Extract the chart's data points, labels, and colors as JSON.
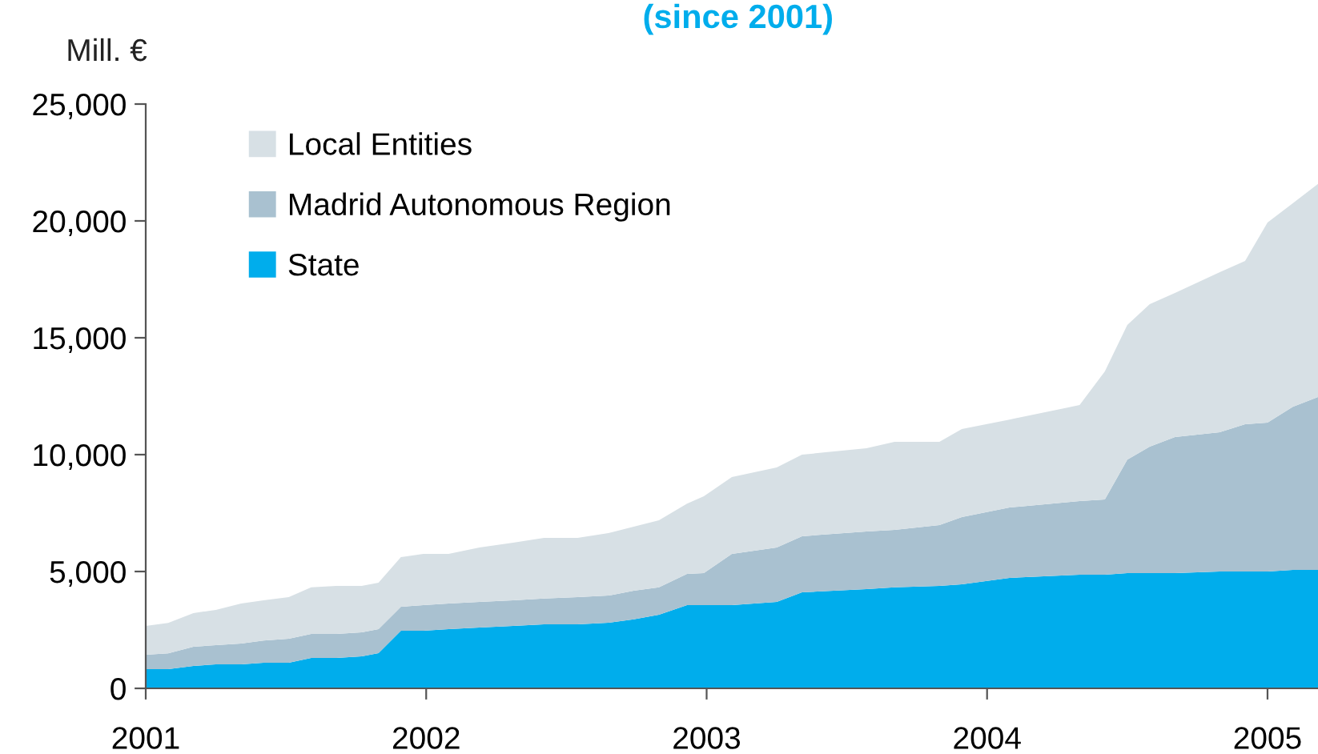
{
  "chart_data": {
    "type": "area",
    "stacked": true,
    "title": "(since 2001)",
    "ylabel": "Mill. €",
    "x": [
      2001.0,
      2001.08,
      2001.17,
      2001.25,
      2001.34,
      2001.42,
      2001.51,
      2001.59,
      2001.68,
      2001.77,
      2001.83,
      2001.91,
      2001.99,
      2002.08,
      2002.19,
      2002.31,
      2002.42,
      2002.54,
      2002.65,
      2002.74,
      2002.83,
      2002.93,
      2002.99,
      2003.09,
      2003.25,
      2003.34,
      2003.57,
      2003.67,
      2003.83,
      2003.91,
      2004.08,
      2004.33,
      2004.42,
      2004.5,
      2004.58,
      2004.67,
      2004.83,
      2004.92,
      2005.0,
      2005.09,
      2005.18
    ],
    "series": [
      {
        "name": "State",
        "color": "#00adec",
        "values": [
          820,
          820,
          960,
          1030,
          1030,
          1100,
          1100,
          1300,
          1300,
          1370,
          1510,
          2470,
          2470,
          2530,
          2600,
          2670,
          2740,
          2740,
          2810,
          2950,
          3150,
          3560,
          3560,
          3560,
          3700,
          4110,
          4250,
          4320,
          4380,
          4450,
          4730,
          4860,
          4860,
          4930,
          4930,
          4930,
          5000,
          5000,
          5000,
          5070,
          5070
        ]
      },
      {
        "name": "Madrid Autonomous Region",
        "color": "#a9c1d0",
        "values": [
          620,
          680,
          820,
          820,
          890,
          950,
          1020,
          1030,
          1030,
          1030,
          1020,
          1020,
          1090,
          1100,
          1100,
          1100,
          1100,
          1160,
          1160,
          1230,
          1170,
          1340,
          1370,
          2190,
          2330,
          2400,
          2460,
          2460,
          2610,
          2880,
          3010,
          3150,
          3220,
          4860,
          5410,
          5820,
          5960,
          6300,
          6370,
          6980,
          7400
        ]
      },
      {
        "name": "Local Entities",
        "color": "#d7e0e5",
        "values": [
          1230,
          1300,
          1440,
          1510,
          1710,
          1720,
          1780,
          1990,
          2050,
          1980,
          1990,
          2130,
          2190,
          2120,
          2330,
          2460,
          2600,
          2540,
          2670,
          2740,
          2870,
          3000,
          3290,
          3290,
          3420,
          3490,
          3560,
          3770,
          3560,
          3770,
          3760,
          4110,
          5480,
          5760,
          6100,
          6170,
          6850,
          6990,
          8560,
          8700,
          9110
        ]
      }
    ],
    "xlim": [
      2001,
      2005.18
    ],
    "xticks": [
      2001,
      2002,
      2003,
      2004,
      2005
    ],
    "ylim": [
      0,
      25000
    ],
    "yticks": [
      0,
      {
        "value": 5000,
        "label": "5,000"
      },
      {
        "value": 10000,
        "label": "10,000"
      },
      {
        "value": 15000,
        "label": "15,000"
      },
      {
        "value": 20000,
        "label": "20,000"
      },
      {
        "value": 25000,
        "label": "25,000"
      }
    ],
    "grid": false,
    "legend": "top left"
  }
}
